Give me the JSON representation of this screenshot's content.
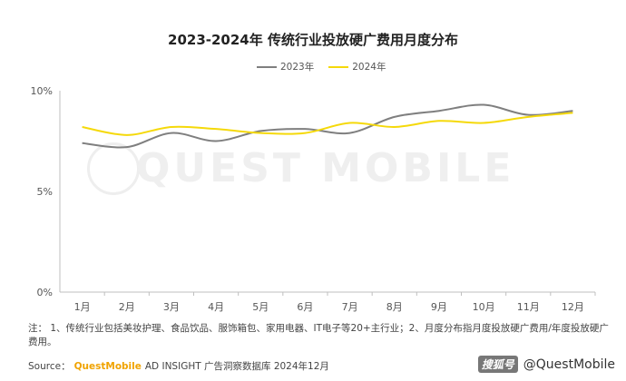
{
  "title": "2023-2024年 传统行业投放硬广费用月度分布",
  "watermark": "QUEST MOBILE",
  "note": "注： 1、传统行业包括美妆护理、食品饮品、服饰箱包、家用电器、IT电子等20+主行业；2、月度分布指月度投放硬广费用/年度投放硬广费用。",
  "source": {
    "label": "Source：",
    "brand": "QuestMobile",
    "text": "AD INSIGHT 广告洞察数据库 2024年12月"
  },
  "credit": {
    "logo": "搜狐号",
    "handle": "@QuestMobile"
  },
  "chart_data": {
    "type": "line",
    "title": "2023-2024年 传统行业投放硬广费用月度分布",
    "categories": [
      "1月",
      "2月",
      "3月",
      "4月",
      "5月",
      "6月",
      "7月",
      "8月",
      "9月",
      "10月",
      "11月",
      "12月"
    ],
    "series": [
      {
        "name": "2023年",
        "color": "#7f7f7f",
        "values": [
          7.4,
          7.2,
          7.9,
          7.5,
          8.0,
          8.1,
          7.9,
          8.7,
          9.0,
          9.3,
          8.8,
          9.0
        ]
      },
      {
        "name": "2024年",
        "color": "#f5d90a",
        "values": [
          8.2,
          7.8,
          8.2,
          8.1,
          7.9,
          7.9,
          8.4,
          8.2,
          8.5,
          8.4,
          8.7,
          8.9
        ]
      }
    ],
    "y_ticks": [
      "0%",
      "5%",
      "10%"
    ],
    "y_tick_values": [
      0,
      5,
      10
    ],
    "ylim": [
      0,
      10
    ],
    "grid": false,
    "legend_placement": "top-center"
  }
}
